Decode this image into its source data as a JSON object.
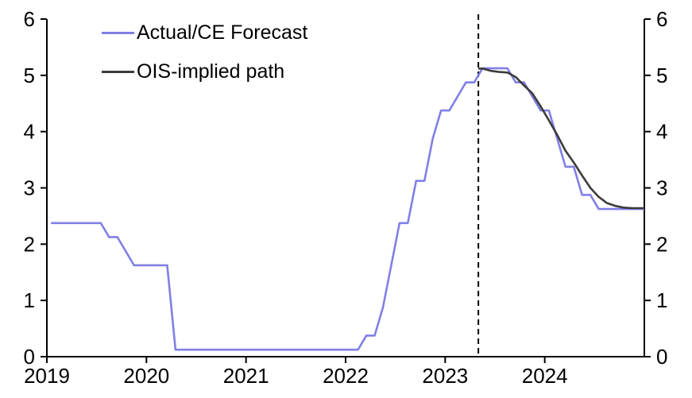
{
  "chart_data": {
    "type": "line",
    "title": "",
    "x_axis": {
      "tick_labels": [
        "2019",
        "2020",
        "2021",
        "2022",
        "2023",
        "2024"
      ],
      "unit": "year",
      "months_span": 72
    },
    "y_axis": {
      "tick_labels": [
        "0",
        "1",
        "2",
        "3",
        "4",
        "5",
        "6"
      ],
      "min": 0,
      "max": 6,
      "sides": "both",
      "grid": false
    },
    "legend_position": "top-left",
    "series": [
      {
        "name": "Actual/CE Forecast",
        "color": "#807fe6",
        "start_month": 0,
        "monthly_values": [
          2.375,
          2.375,
          2.375,
          2.375,
          2.375,
          2.375,
          2.375,
          2.125,
          2.125,
          1.875,
          1.625,
          1.625,
          1.625,
          1.625,
          1.625,
          0.125,
          0.125,
          0.125,
          0.125,
          0.125,
          0.125,
          0.125,
          0.125,
          0.125,
          0.125,
          0.125,
          0.125,
          0.125,
          0.125,
          0.125,
          0.125,
          0.125,
          0.125,
          0.125,
          0.125,
          0.125,
          0.125,
          0.125,
          0.375,
          0.375,
          0.875,
          1.625,
          2.375,
          2.375,
          3.125,
          3.125,
          3.875,
          4.375,
          4.375,
          4.625,
          4.875,
          4.875,
          5.125,
          5.125,
          5.125,
          5.125,
          4.875,
          4.875,
          4.625,
          4.375,
          4.375,
          3.875,
          3.375,
          3.375,
          2.875,
          2.875,
          2.625,
          2.625,
          2.625,
          2.625,
          2.625,
          2.625
        ]
      },
      {
        "name": "OIS-implied path",
        "color": "#3c3c3c",
        "start_month": 52,
        "start_at_divider": true,
        "monthly_values": [
          5.12,
          5.08,
          5.06,
          5.05,
          4.97,
          4.82,
          4.68,
          4.45,
          4.2,
          3.94,
          3.66,
          3.45,
          3.22,
          3.0,
          2.84,
          2.73,
          2.68,
          2.65,
          2.64,
          2.64
        ]
      }
    ],
    "forecast_divider": {
      "month_boundary": 52,
      "line_style": "dashed",
      "color": "#000000"
    }
  }
}
